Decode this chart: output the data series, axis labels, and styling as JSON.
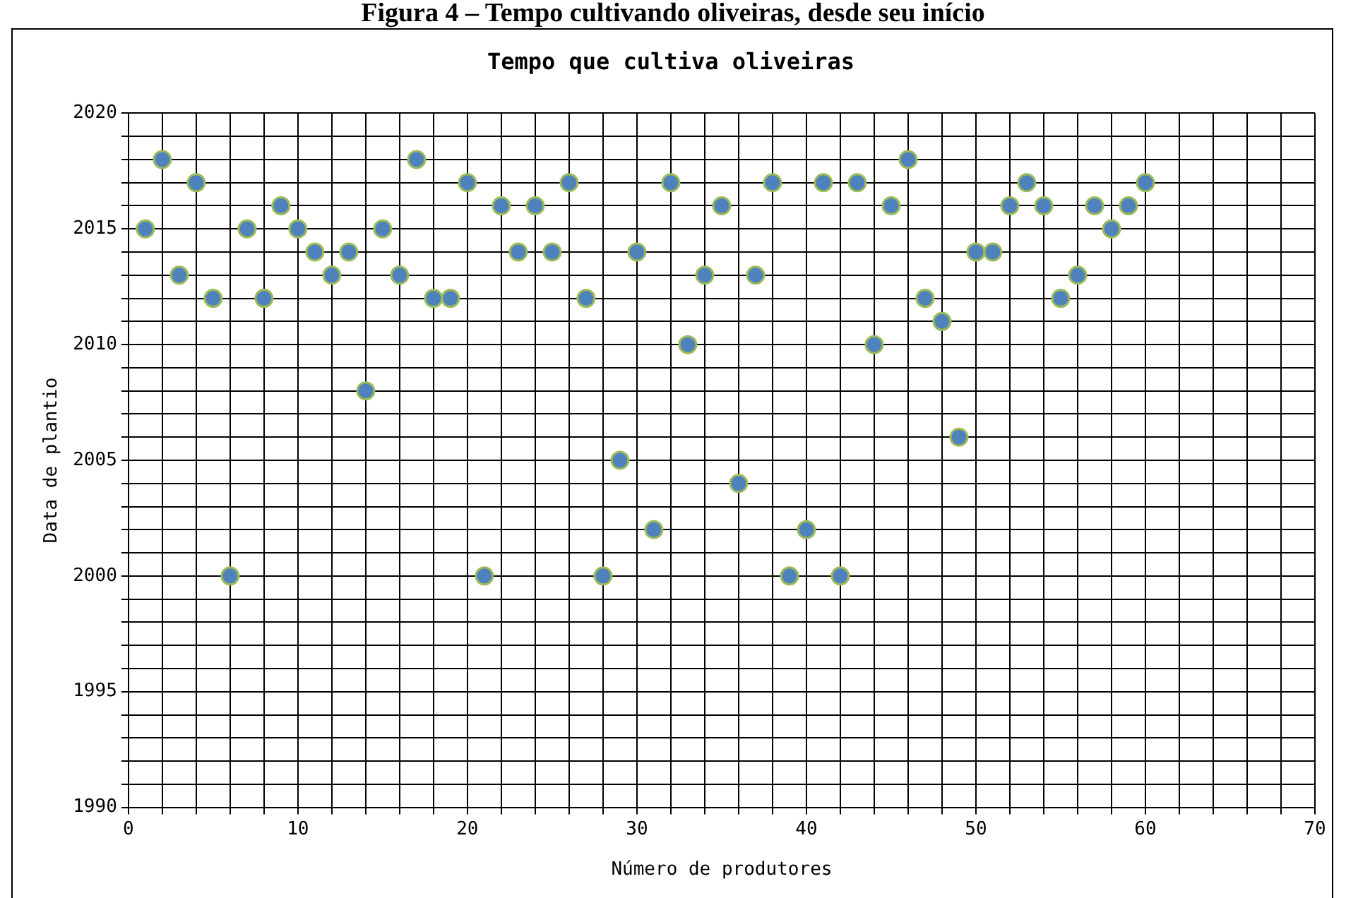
{
  "chart_data": {
    "type": "scatter",
    "title": "Tempo que cultiva oliveiras",
    "xlabel": "Número de produtores",
    "ylabel": "Data de plantio",
    "annotations": [
      "Figura 4 – Tempo cultivando oliveiras, desde seu início"
    ],
    "x": [
      1,
      2,
      3,
      4,
      5,
      6,
      7,
      8,
      9,
      10,
      11,
      12,
      13,
      14,
      15,
      16,
      17,
      18,
      19,
      20,
      21,
      22,
      23,
      24,
      25,
      26,
      27,
      28,
      29,
      30,
      31,
      32,
      33,
      34,
      35,
      36,
      37,
      38,
      39,
      40,
      41,
      42,
      43,
      44,
      45,
      46,
      47,
      48,
      49,
      50,
      51,
      52,
      53,
      54,
      55,
      56,
      57,
      58,
      59,
      60
    ],
    "series": [
      {
        "color": "#4f81bd",
        "values": [
          2015,
          2018,
          2013,
          2017,
          2012,
          2000,
          2015,
          2012,
          2016,
          2015,
          2014,
          2013,
          2014,
          2008,
          2015,
          2013,
          2018,
          2012,
          2012,
          2017,
          2000,
          2016,
          2014,
          2016,
          2014,
          2017,
          2012,
          2000,
          2005,
          2014,
          2002,
          2017,
          2010,
          2013,
          2016,
          2004,
          2013,
          2017,
          2000,
          2002,
          2017,
          2000,
          2017,
          2010,
          2016,
          2018,
          2012,
          2011,
          2006,
          2014,
          2014,
          2016,
          2017,
          2016,
          2012,
          2013,
          2016,
          2015,
          2016,
          2017
        ]
      }
    ],
    "xlim": [
      0,
      70
    ],
    "ylim": [
      1990,
      2020
    ],
    "xticks": [
      0,
      {
        "value": 2,
        "label": null
      },
      {
        "value": 4,
        "label": null
      },
      {
        "value": 6,
        "label": null
      },
      {
        "value": 8,
        "label": null
      },
      10,
      {
        "value": 12,
        "label": null
      },
      {
        "value": 14,
        "label": null
      },
      {
        "value": 16,
        "label": null
      },
      {
        "value": 18,
        "label": null
      },
      20,
      {
        "value": 22,
        "label": null
      },
      {
        "value": 24,
        "label": null
      },
      {
        "value": 26,
        "label": null
      },
      {
        "value": 28,
        "label": null
      },
      30,
      {
        "value": 32,
        "label": null
      },
      {
        "value": 34,
        "label": null
      },
      {
        "value": 36,
        "label": null
      },
      {
        "value": 38,
        "label": null
      },
      40,
      {
        "value": 42,
        "label": null
      },
      {
        "value": 44,
        "label": null
      },
      {
        "value": 46,
        "label": null
      },
      {
        "value": 48,
        "label": null
      },
      50,
      {
        "value": 52,
        "label": null
      },
      {
        "value": 54,
        "label": null
      },
      {
        "value": 56,
        "label": null
      },
      {
        "value": 58,
        "label": null
      },
      60,
      {
        "value": 62,
        "label": null
      },
      {
        "value": 64,
        "label": null
      },
      {
        "value": 66,
        "label": null
      },
      {
        "value": 68,
        "label": null
      },
      70
    ],
    "yticks": [
      1990,
      {
        "value": 1991,
        "label": null
      },
      {
        "value": 1992,
        "label": null
      },
      {
        "value": 1993,
        "label": null
      },
      {
        "value": 1994,
        "label": null
      },
      1995,
      {
        "value": 1996,
        "label": null
      },
      {
        "value": 1997,
        "label": null
      },
      {
        "value": 1998,
        "label": null
      },
      {
        "value": 1999,
        "label": null
      },
      2000,
      {
        "value": 2001,
        "label": null
      },
      {
        "value": 2002,
        "label": null
      },
      {
        "value": 2003,
        "label": null
      },
      {
        "value": 2004,
        "label": null
      },
      2005,
      {
        "value": 2006,
        "label": null
      },
      {
        "value": 2007,
        "label": null
      },
      {
        "value": 2008,
        "label": null
      },
      {
        "value": 2009,
        "label": null
      },
      2010,
      {
        "value": 2011,
        "label": null
      },
      {
        "value": 2012,
        "label": null
      },
      {
        "value": 2013,
        "label": null
      },
      {
        "value": 2014,
        "label": null
      },
      2015,
      {
        "value": 2016,
        "label": null
      },
      {
        "value": 2017,
        "label": null
      },
      {
        "value": 2018,
        "label": null
      },
      {
        "value": 2019,
        "label": null
      },
      2020
    ],
    "grid": true,
    "legend": false,
    "marker": "circle"
  }
}
